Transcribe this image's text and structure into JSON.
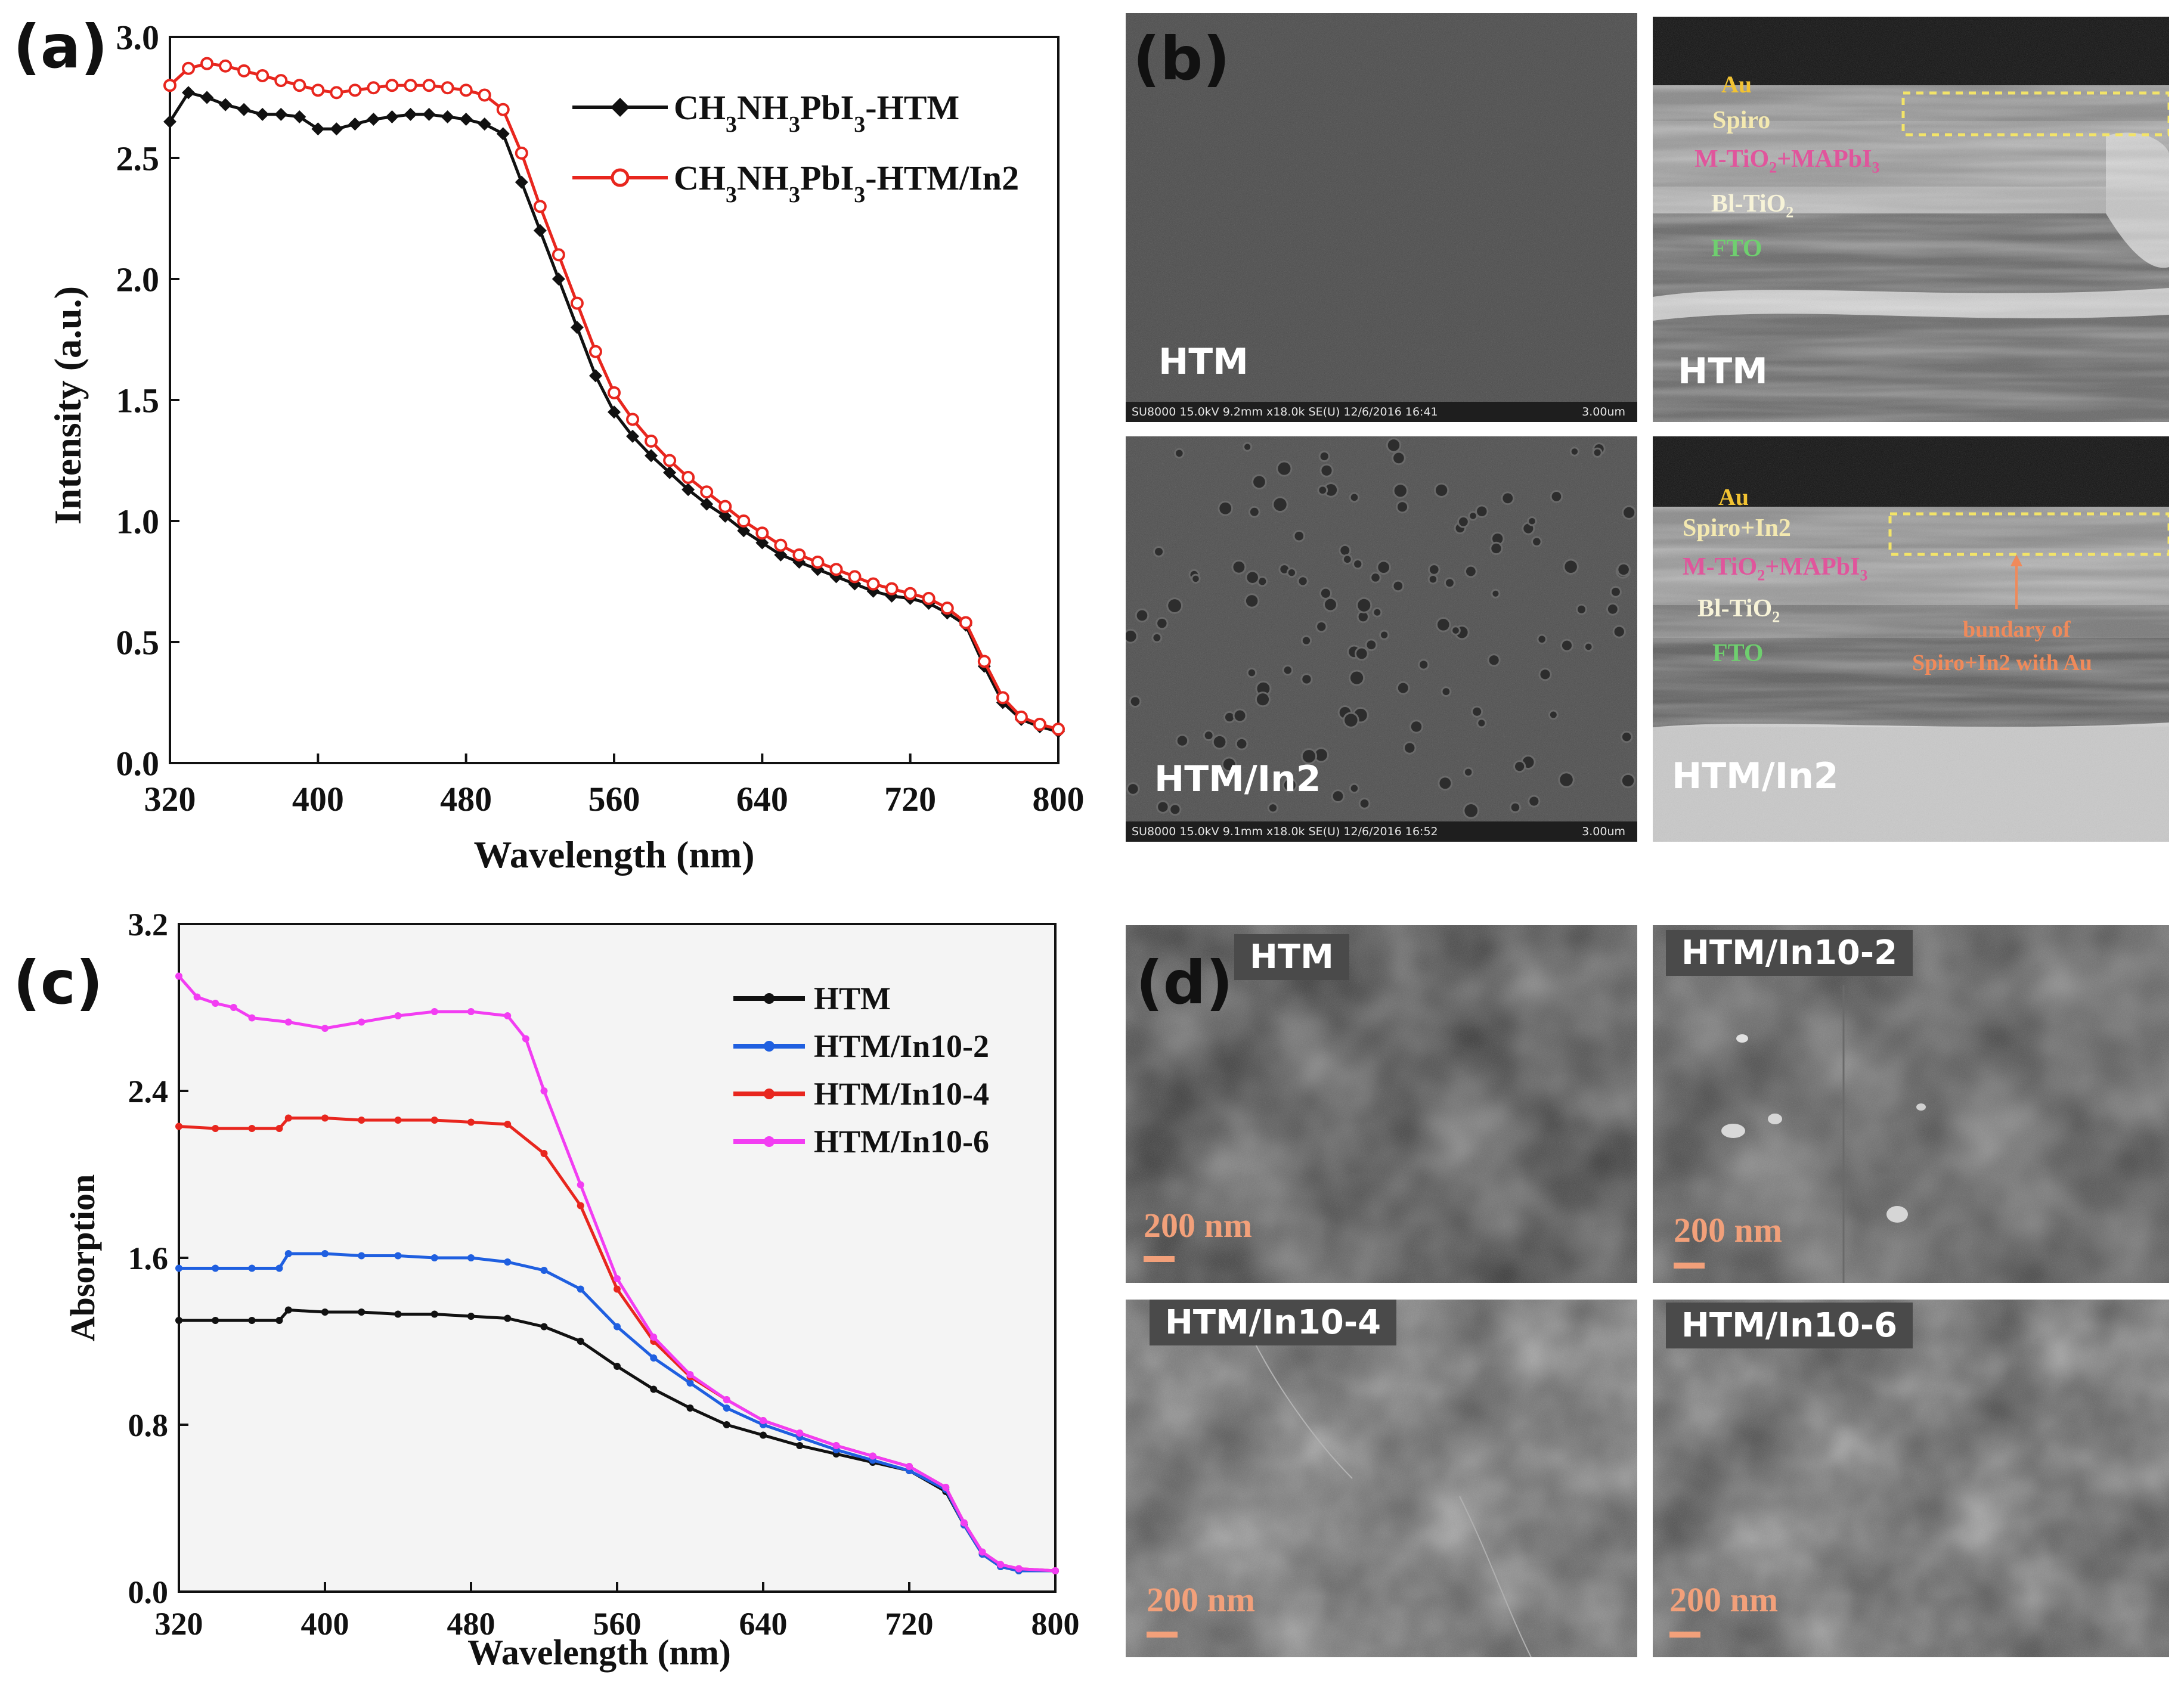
{
  "panels": {
    "a": "(a)",
    "b": "(b)",
    "c": "(c)",
    "d": "(d)"
  },
  "chart_a": {
    "ylabel": "Intensity (a.u.)",
    "xlabel": "Wavelength (nm)",
    "yticks": [
      "0.0",
      "0.5",
      "1.0",
      "1.5",
      "2.0",
      "2.5",
      "3.0"
    ],
    "xticks": [
      "320",
      "400",
      "480",
      "560",
      "640",
      "720",
      "800"
    ],
    "legend": [
      {
        "prefix": "CH",
        "sub1": "3",
        "mid1": "NH",
        "sub2": "3",
        "mid2": "PbI",
        "sub3": "3",
        "suffix": "-HTM"
      },
      {
        "prefix": "CH",
        "sub1": "3",
        "mid1": "NH",
        "sub2": "3",
        "mid2": "PbI",
        "sub3": "3",
        "suffix": "-HTM/In2"
      }
    ]
  },
  "chart_c": {
    "ylabel": "Absorption",
    "xlabel": "Wavelength (nm)",
    "yticks": [
      "0.0",
      "0.8",
      "1.6",
      "2.4",
      "3.2"
    ],
    "xticks": [
      "320",
      "400",
      "480",
      "560",
      "640",
      "720",
      "800"
    ],
    "legend": [
      "HTM",
      "HTM/In10-2",
      "HTM/In10-4",
      "HTM/In10-6"
    ]
  },
  "chart_data": [
    {
      "type": "line",
      "title": "(a)",
      "xlabel": "Wavelength (nm)",
      "ylabel": "Intensity (a.u.)",
      "xlim": [
        320,
        800
      ],
      "ylim": [
        0.0,
        3.0
      ],
      "series": [
        {
          "name": "CH3NH3PbI3-HTM",
          "color": "#111111",
          "marker": "filled-diamond",
          "x": [
            320,
            330,
            340,
            350,
            360,
            370,
            380,
            390,
            400,
            410,
            420,
            430,
            440,
            450,
            460,
            470,
            480,
            490,
            500,
            510,
            520,
            530,
            540,
            550,
            560,
            570,
            580,
            590,
            600,
            610,
            620,
            630,
            640,
            650,
            660,
            670,
            680,
            690,
            700,
            710,
            720,
            730,
            740,
            750,
            760,
            770,
            780,
            790,
            800
          ],
          "y": [
            2.65,
            2.77,
            2.75,
            2.72,
            2.7,
            2.68,
            2.68,
            2.67,
            2.62,
            2.62,
            2.64,
            2.66,
            2.67,
            2.68,
            2.68,
            2.67,
            2.66,
            2.64,
            2.6,
            2.4,
            2.2,
            2.0,
            1.8,
            1.6,
            1.45,
            1.35,
            1.27,
            1.2,
            1.13,
            1.07,
            1.02,
            0.96,
            0.91,
            0.86,
            0.83,
            0.8,
            0.77,
            0.74,
            0.71,
            0.69,
            0.68,
            0.66,
            0.62,
            0.57,
            0.4,
            0.25,
            0.18,
            0.15,
            0.13
          ]
        },
        {
          "name": "CH3NH3PbI3-HTM/In2",
          "color": "#e8261e",
          "marker": "open-circle",
          "x": [
            320,
            330,
            340,
            350,
            360,
            370,
            380,
            390,
            400,
            410,
            420,
            430,
            440,
            450,
            460,
            470,
            480,
            490,
            500,
            510,
            520,
            530,
            540,
            550,
            560,
            570,
            580,
            590,
            600,
            610,
            620,
            630,
            640,
            650,
            660,
            670,
            680,
            690,
            700,
            710,
            720,
            730,
            740,
            750,
            760,
            770,
            780,
            790,
            800
          ],
          "y": [
            2.8,
            2.87,
            2.89,
            2.88,
            2.86,
            2.84,
            2.82,
            2.8,
            2.78,
            2.77,
            2.78,
            2.79,
            2.8,
            2.8,
            2.8,
            2.79,
            2.78,
            2.76,
            2.7,
            2.52,
            2.3,
            2.1,
            1.9,
            1.7,
            1.53,
            1.42,
            1.33,
            1.25,
            1.18,
            1.12,
            1.06,
            1.0,
            0.95,
            0.9,
            0.86,
            0.83,
            0.8,
            0.77,
            0.74,
            0.72,
            0.7,
            0.68,
            0.64,
            0.58,
            0.42,
            0.27,
            0.19,
            0.16,
            0.14
          ]
        }
      ]
    },
    {
      "type": "line",
      "title": "(c)",
      "xlabel": "Wavelength (nm)",
      "ylabel": "Absorption",
      "xlim": [
        320,
        800
      ],
      "ylim": [
        0.0,
        3.2
      ],
      "series": [
        {
          "name": "HTM",
          "color": "#111111",
          "x": [
            320,
            340,
            360,
            375,
            380,
            400,
            420,
            440,
            460,
            480,
            500,
            520,
            540,
            560,
            580,
            600,
            620,
            640,
            660,
            680,
            700,
            720,
            740,
            750,
            760,
            770,
            780,
            800
          ],
          "y": [
            1.3,
            1.3,
            1.3,
            1.3,
            1.35,
            1.34,
            1.34,
            1.33,
            1.33,
            1.32,
            1.31,
            1.27,
            1.2,
            1.08,
            0.97,
            0.88,
            0.8,
            0.75,
            0.7,
            0.66,
            0.62,
            0.58,
            0.48,
            0.32,
            0.18,
            0.12,
            0.1,
            0.1
          ]
        },
        {
          "name": "HTM/In10-2",
          "color": "#1f5fe0",
          "x": [
            320,
            340,
            360,
            375,
            380,
            400,
            420,
            440,
            460,
            480,
            500,
            520,
            540,
            560,
            580,
            600,
            620,
            640,
            660,
            680,
            700,
            720,
            740,
            750,
            760,
            770,
            780,
            800
          ],
          "y": [
            1.55,
            1.55,
            1.55,
            1.55,
            1.62,
            1.62,
            1.61,
            1.61,
            1.6,
            1.6,
            1.58,
            1.54,
            1.45,
            1.27,
            1.12,
            1.0,
            0.88,
            0.8,
            0.74,
            0.68,
            0.63,
            0.58,
            0.49,
            0.32,
            0.18,
            0.12,
            0.1,
            0.1
          ]
        },
        {
          "name": "HTM/In10-4",
          "color": "#e8261e",
          "x": [
            320,
            340,
            360,
            375,
            380,
            400,
            420,
            440,
            460,
            480,
            500,
            520,
            540,
            560,
            580,
            600,
            620,
            640,
            660,
            680,
            700,
            720,
            740,
            750,
            760,
            770,
            780,
            800
          ],
          "y": [
            2.23,
            2.22,
            2.22,
            2.22,
            2.27,
            2.27,
            2.26,
            2.26,
            2.26,
            2.25,
            2.24,
            2.1,
            1.85,
            1.45,
            1.2,
            1.03,
            0.92,
            0.82,
            0.76,
            0.7,
            0.65,
            0.6,
            0.5,
            0.33,
            0.19,
            0.13,
            0.11,
            0.1
          ]
        },
        {
          "name": "HTM/In10-6",
          "color": "#f23df2",
          "x": [
            320,
            330,
            340,
            350,
            360,
            380,
            400,
            420,
            440,
            460,
            480,
            500,
            510,
            520,
            540,
            560,
            580,
            600,
            620,
            640,
            660,
            680,
            700,
            720,
            740,
            750,
            760,
            770,
            780,
            800
          ],
          "y": [
            2.95,
            2.85,
            2.82,
            2.8,
            2.75,
            2.73,
            2.7,
            2.73,
            2.76,
            2.78,
            2.78,
            2.76,
            2.65,
            2.4,
            1.95,
            1.5,
            1.22,
            1.04,
            0.92,
            0.82,
            0.76,
            0.7,
            0.65,
            0.6,
            0.5,
            0.33,
            0.19,
            0.13,
            0.11,
            0.1
          ]
        }
      ]
    }
  ],
  "panel_b": {
    "top_left": {
      "label": "HTM",
      "info": "SU8000 15.0kV 9.2mm x18.0k SE(U) 12/6/2016 16:41",
      "scale": "3.00um"
    },
    "bottom_left": {
      "label": "HTM/In2",
      "info": "SU8000 15.0kV 9.1mm x18.0k SE(U) 12/6/2016 16:52",
      "scale": "3.00um"
    },
    "top_right": {
      "label": "HTM",
      "au": "Au",
      "spiro": "Spiro",
      "mtio_a": "M-TiO",
      "mtio_sub": "2",
      "mtio_b": "+MAPbI",
      "mtio_sub2": "3",
      "bl_a": "Bl-TiO",
      "bl_sub": "2",
      "fto": "FTO"
    },
    "bottom_right": {
      "label": "HTM/In2",
      "au": "Au",
      "spiro": "Spiro+In2",
      "mtio_a": "M-TiO",
      "mtio_sub": "2",
      "mtio_b": "+MAPbI",
      "mtio_sub2": "3",
      "bl_a": "Bl-TiO",
      "bl_sub": "2",
      "fto": "FTO",
      "annot1": "bundary of",
      "annot2": "Spiro+In2 with Au"
    }
  },
  "panel_d": {
    "tl": {
      "label": "HTM",
      "scale": "200 nm"
    },
    "tr": {
      "label": "HTM/In10-2",
      "scale": "200 nm"
    },
    "bl": {
      "label": "HTM/In10-4",
      "scale": "200 nm"
    },
    "br": {
      "label": "HTM/In10-6",
      "scale": "200 nm"
    }
  },
  "colors": {
    "black": "#111111",
    "red": "#e8261e",
    "blue": "#1f5fe0",
    "magenta": "#f23df2",
    "scalebar": "#f2a07a",
    "au": "#f1c232",
    "mtio": "#e0559c",
    "fto": "#6fcf6f"
  }
}
